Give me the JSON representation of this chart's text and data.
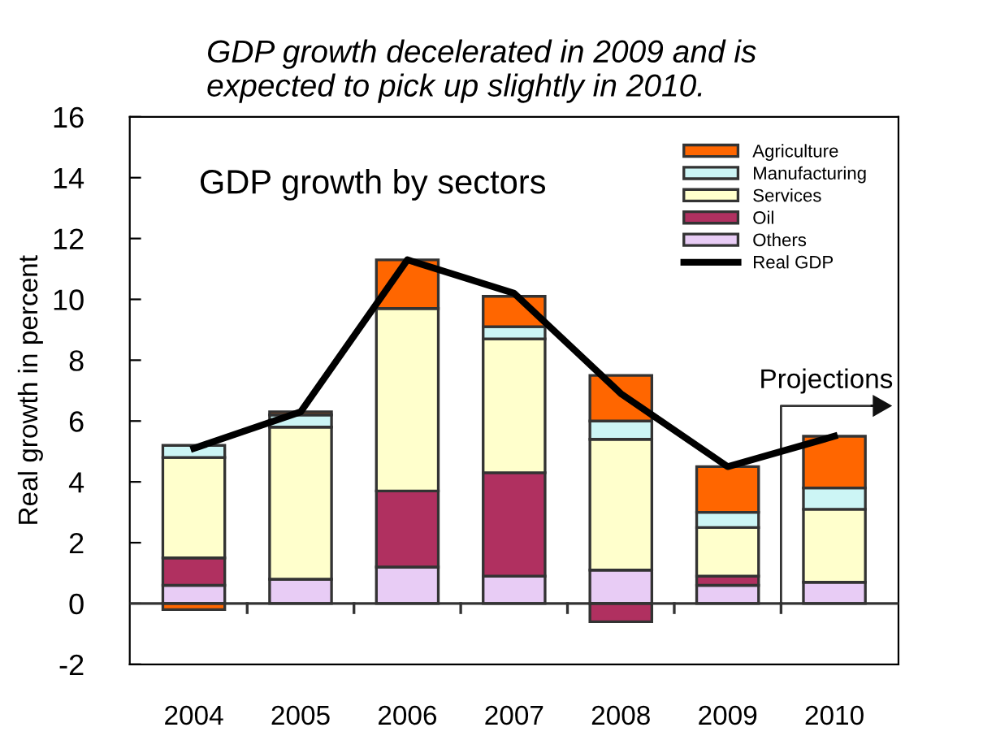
{
  "chart_data": {
    "type": "bar",
    "stacked": true,
    "title": "GDP growth decelerated in 2009 and is\nexpected to pick up slightly in 2010.",
    "subtitle": "GDP growth by sectors",
    "ylabel": "Real growth in percent",
    "categories": [
      "2004",
      "2005",
      "2006",
      "2007",
      "2008",
      "2009",
      "2010"
    ],
    "series": [
      {
        "name": "Others",
        "color": "#e8ccf5",
        "values": [
          0.6,
          0.8,
          1.2,
          0.9,
          1.1,
          0.6,
          0.7
        ]
      },
      {
        "name": "Oil",
        "color": "#b03060",
        "values": [
          0.9,
          null,
          2.5,
          3.4,
          -0.6,
          0.3,
          null
        ]
      },
      {
        "name": "Services",
        "color": "#ffffcc",
        "values": [
          3.3,
          5.0,
          6.0,
          4.4,
          4.3,
          1.6,
          2.4
        ]
      },
      {
        "name": "Manufacturing",
        "color": "#ccf5f5",
        "values": [
          0.4,
          0.4,
          null,
          0.4,
          0.6,
          0.5,
          0.7
        ]
      },
      {
        "name": "Agriculture",
        "color": "#ff6600",
        "values": [
          -0.2,
          0.1,
          1.6,
          1.0,
          1.5,
          1.5,
          1.7
        ]
      },
      {
        "name": "Real GDP",
        "type": "line",
        "color": "#000000",
        "values": [
          5.1,
          6.3,
          11.3,
          10.2,
          6.9,
          4.5,
          5.5
        ]
      }
    ],
    "ylim": [
      -2,
      16
    ],
    "yticks": [
      -2,
      0,
      2,
      4,
      6,
      8,
      10,
      12,
      14,
      16
    ],
    "grid": false,
    "legend": "top right",
    "ref_lines": [
      {
        "axis": "y",
        "value": 0
      }
    ],
    "annotations": [
      {
        "text": "Projections",
        "x": "2010",
        "y": 5.5
      }
    ]
  }
}
